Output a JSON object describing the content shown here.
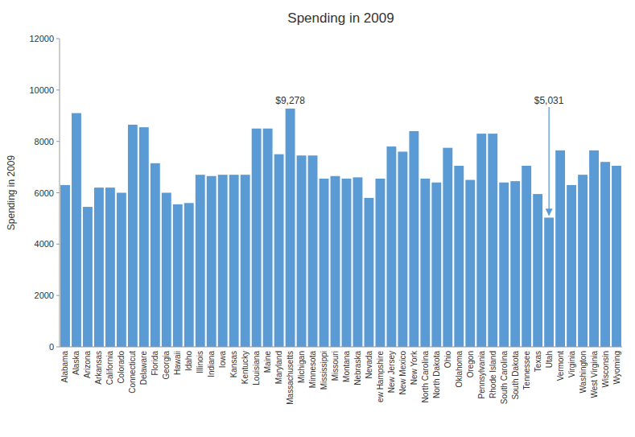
{
  "chart_data": {
    "type": "bar",
    "title": "Spending in 2009",
    "ylabel": "Spending in 2009",
    "categories": [
      "Alabama",
      "Alaska",
      "Arizona",
      "Arkansas",
      "California",
      "Colorado",
      "Connecticut",
      "Delaware",
      "Florida",
      "Georgia",
      "Hawaii",
      "Idaho",
      "Illinois",
      "Indiana",
      "Iowa",
      "Kansas",
      "Kentucky",
      "Louisiana",
      "Maine",
      "Maryland",
      "Massachusetts",
      "Michigan",
      "Minnesota",
      "Mississippi",
      "Missouri",
      "Montana",
      "Nebraska",
      "Nevada",
      "ew Hampshire",
      "New Jersey",
      "New Mexico",
      "New York",
      "North Carolina",
      "North Dakota",
      "Ohio",
      "Oklahoma",
      "Oregon",
      "Pennsylvania",
      "Rhode Island",
      "South Carolina",
      "South Dakota",
      "Tennessee",
      "Texas",
      "Utah",
      "Vermont",
      "Virginia",
      "Washington",
      "West Virginia",
      "Wisconsin",
      "Wyoming"
    ],
    "values": [
      6300,
      9100,
      5450,
      6200,
      6200,
      6000,
      8650,
      8550,
      7150,
      6000,
      5550,
      5600,
      6700,
      6650,
      6700,
      6700,
      6700,
      8500,
      8500,
      7500,
      9278,
      7450,
      7450,
      6550,
      6650,
      6550,
      6600,
      5800,
      6550,
      7800,
      7600,
      8400,
      6550,
      6400,
      7750,
      7050,
      6500,
      8300,
      8300,
      6400,
      6450,
      7050,
      5950,
      5031,
      7650,
      6300,
      6700,
      7650,
      7200,
      7050
    ],
    "color": "#5b9bd5",
    "ylim": [
      0,
      12000
    ],
    "yticks": [
      0,
      2000,
      4000,
      6000,
      8000,
      10000,
      12000
    ],
    "grid": false,
    "annotations": [
      {
        "text": "$9,278",
        "value": 9278,
        "category": "Massachusetts"
      },
      {
        "text": "$5,031",
        "value": 5031,
        "category": "Utah"
      }
    ]
  }
}
